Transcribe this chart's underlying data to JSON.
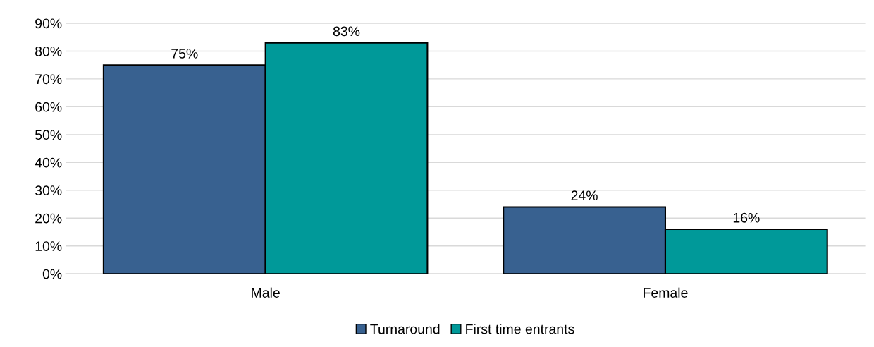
{
  "chart_data": {
    "type": "bar",
    "categories": [
      "Male",
      "Female"
    ],
    "series": [
      {
        "name": "Turnaround",
        "color": "#386190",
        "values": [
          75,
          24
        ],
        "value_labels": [
          "75%",
          "24%"
        ]
      },
      {
        "name": "First time entrants",
        "color": "#009999",
        "values": [
          83,
          16
        ],
        "value_labels": [
          "83%",
          "16%"
        ]
      }
    ],
    "ylim": [
      0,
      90
    ],
    "yticks": [
      {
        "value": 0,
        "label": "0%"
      },
      {
        "value": 10,
        "label": "10%"
      },
      {
        "value": 20,
        "label": "20%"
      },
      {
        "value": 30,
        "label": "30%"
      },
      {
        "value": 40,
        "label": "40%"
      },
      {
        "value": 50,
        "label": "50%"
      },
      {
        "value": 60,
        "label": "60%"
      },
      {
        "value": 70,
        "label": "70%"
      },
      {
        "value": 80,
        "label": "80%"
      },
      {
        "value": 90,
        "label": "90%"
      }
    ],
    "grid": "y",
    "legend": "bottom"
  }
}
